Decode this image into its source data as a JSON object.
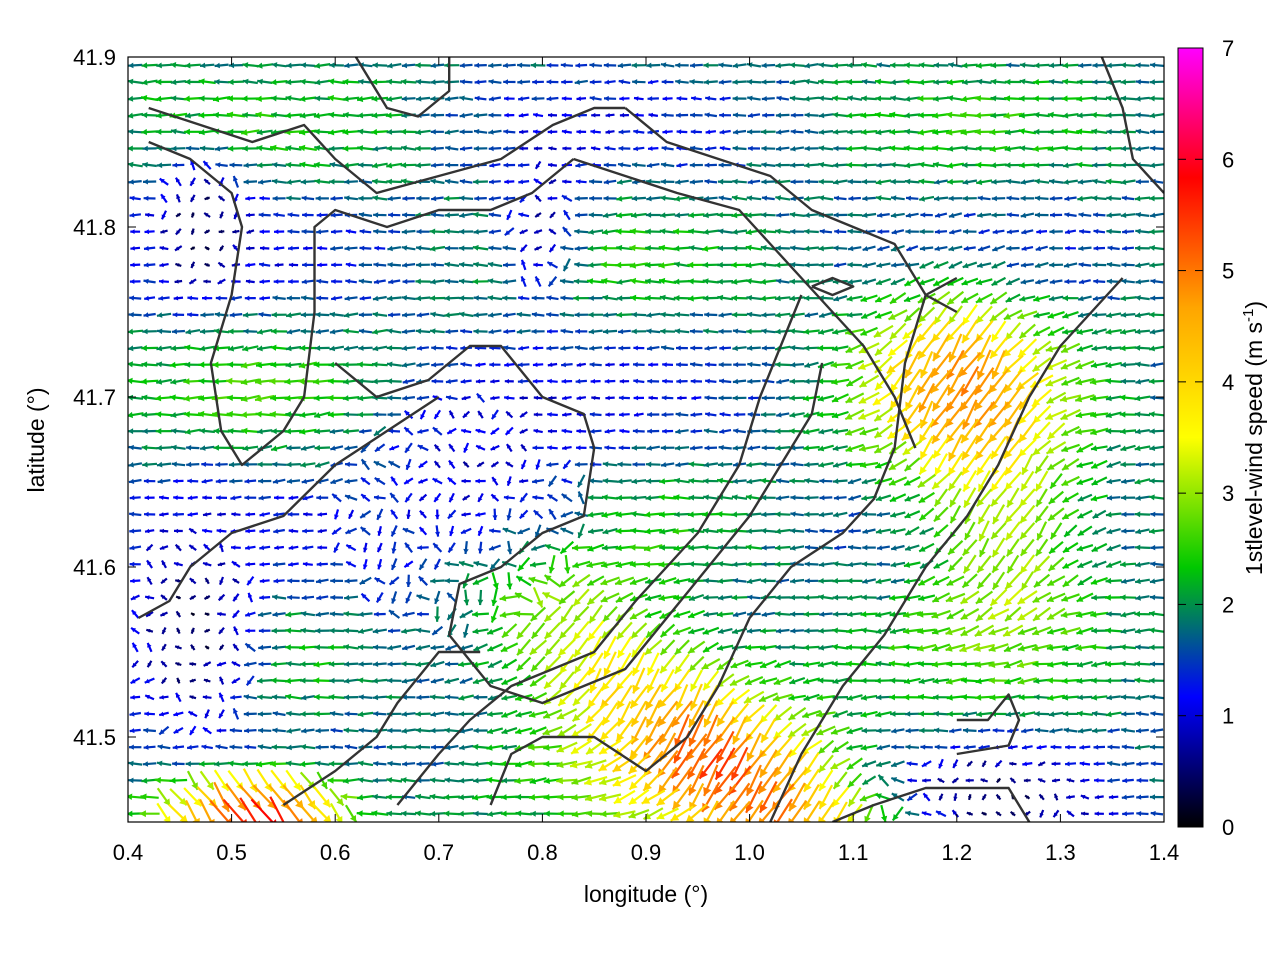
{
  "chart_data": {
    "type": "vector-field",
    "xlabel": "longitude (°)",
    "ylabel": "latitude (°)",
    "xlim": [
      0.4,
      1.4
    ],
    "ylim": [
      41.45,
      41.9
    ],
    "x_ticks": [
      "0.4",
      "0.5",
      "0.6",
      "0.7",
      "0.8",
      "0.9",
      "1.0",
      "1.1",
      "1.2",
      "1.3",
      "1.4"
    ],
    "x_tick_values": [
      0.4,
      0.5,
      0.6,
      0.7,
      0.8,
      0.9,
      1.0,
      1.1,
      1.2,
      1.3,
      1.4
    ],
    "y_ticks": [
      "41.5",
      "41.6",
      "41.7",
      "41.8",
      "41.9"
    ],
    "y_tick_values": [
      41.5,
      41.6,
      41.7,
      41.8,
      41.9
    ],
    "colorbar": {
      "label": "1stlevel-wind speed (m s-1)",
      "range": [
        0,
        7
      ],
      "ticks": [
        "0",
        "1",
        "2",
        "3",
        "4",
        "5",
        "6",
        "7"
      ],
      "tick_values": [
        0,
        1,
        2,
        3,
        4,
        5,
        6,
        7
      ],
      "colormap": [
        "#000000",
        "#0000ff",
        "#00c800",
        "#ffff00",
        "#ffa500",
        "#ff0000",
        "#ff00ff"
      ]
    },
    "grid": false,
    "field_grid": {
      "nx": 72,
      "ny": 46
    },
    "dominant_direction": "east-to-west flow (arrows pointing west) with north-westward flow in the south-east",
    "speed_regions": [
      {
        "name": "south-east high-wind band",
        "center": [
          1.0,
          41.57
        ],
        "peak_speed": 5.5,
        "direction": "north-west"
      },
      {
        "name": "north-east strong band",
        "center": [
          1.2,
          41.72
        ],
        "peak_speed": 4.5,
        "direction": "north-west"
      },
      {
        "name": "south-west corner jet",
        "center": [
          0.5,
          41.46
        ],
        "peak_speed": 6.5,
        "direction": "north-east"
      },
      {
        "name": "central calm area",
        "center": [
          0.7,
          41.63
        ],
        "peak_speed": 0.7,
        "direction": "variable"
      },
      {
        "name": "western calm area",
        "center": [
          0.45,
          41.55
        ],
        "peak_speed": 0.8,
        "direction": "variable"
      }
    ],
    "contours": [
      [
        [
          0.42,
          41.87
        ],
        [
          0.47,
          41.86
        ],
        [
          0.52,
          41.85
        ],
        [
          0.57,
          41.86
        ],
        [
          0.6,
          41.84
        ],
        [
          0.64,
          41.82
        ],
        [
          0.7,
          41.83
        ],
        [
          0.76,
          41.84
        ],
        [
          0.81,
          41.86
        ],
        [
          0.85,
          41.87
        ],
        [
          0.88,
          41.87
        ]
      ],
      [
        [
          0.62,
          41.9
        ],
        [
          0.65,
          41.87
        ],
        [
          0.68,
          41.865
        ],
        [
          0.7,
          41.875
        ],
        [
          0.71,
          41.88
        ],
        [
          0.71,
          41.9
        ]
      ],
      [
        [
          0.88,
          41.87
        ],
        [
          0.92,
          41.85
        ],
        [
          0.97,
          41.84
        ],
        [
          1.02,
          41.83
        ],
        [
          1.06,
          41.81
        ],
        [
          1.1,
          41.8
        ],
        [
          1.14,
          41.79
        ],
        [
          1.17,
          41.76
        ],
        [
          1.2,
          41.75
        ]
      ],
      [
        [
          0.42,
          41.85
        ],
        [
          0.46,
          41.84
        ],
        [
          0.5,
          41.82
        ],
        [
          0.51,
          41.8
        ],
        [
          0.5,
          41.76
        ],
        [
          0.48,
          41.72
        ],
        [
          0.49,
          41.68
        ],
        [
          0.51,
          41.66
        ],
        [
          0.55,
          41.68
        ],
        [
          0.57,
          41.7
        ],
        [
          0.58,
          41.75
        ],
        [
          0.58,
          41.8
        ],
        [
          0.6,
          41.81
        ],
        [
          0.65,
          41.8
        ],
        [
          0.7,
          41.81
        ],
        [
          0.75,
          41.81
        ],
        [
          0.79,
          41.82
        ],
        [
          0.83,
          41.84
        ]
      ],
      [
        [
          0.83,
          41.84
        ],
        [
          0.88,
          41.83
        ],
        [
          0.93,
          41.82
        ],
        [
          0.99,
          41.81
        ],
        [
          1.02,
          41.79
        ],
        [
          1.05,
          41.77
        ],
        [
          1.08,
          41.75
        ],
        [
          1.11,
          41.73
        ],
        [
          1.14,
          41.7
        ],
        [
          1.16,
          41.67
        ]
      ],
      [
        [
          0.6,
          41.72
        ],
        [
          0.64,
          41.7
        ],
        [
          0.69,
          41.71
        ],
        [
          0.73,
          41.73
        ],
        [
          0.76,
          41.73
        ],
        [
          0.8,
          41.7
        ],
        [
          0.84,
          41.69
        ],
        [
          0.85,
          41.67
        ],
        [
          0.84,
          41.63
        ],
        [
          0.8,
          41.62
        ],
        [
          0.76,
          41.6
        ],
        [
          0.72,
          41.59
        ],
        [
          0.71,
          41.56
        ],
        [
          0.75,
          41.53
        ],
        [
          0.8,
          41.52
        ],
        [
          0.84,
          41.53
        ],
        [
          0.88,
          41.54
        ],
        [
          0.92,
          41.57
        ],
        [
          0.96,
          41.6
        ],
        [
          1.0,
          41.63
        ],
        [
          1.03,
          41.66
        ],
        [
          1.06,
          41.69
        ],
        [
          1.07,
          41.72
        ]
      ],
      [
        [
          0.41,
          41.57
        ],
        [
          0.44,
          41.58
        ],
        [
          0.46,
          41.6
        ],
        [
          0.5,
          41.62
        ],
        [
          0.55,
          41.63
        ],
        [
          0.6,
          41.66
        ],
        [
          0.65,
          41.68
        ],
        [
          0.7,
          41.7
        ]
      ],
      [
        [
          0.55,
          41.46
        ],
        [
          0.6,
          41.48
        ],
        [
          0.64,
          41.5
        ],
        [
          0.66,
          41.52
        ],
        [
          0.7,
          41.55
        ],
        [
          0.74,
          41.55
        ]
      ],
      [
        [
          0.66,
          41.46
        ],
        [
          0.7,
          41.49
        ],
        [
          0.73,
          41.51
        ],
        [
          0.77,
          41.53
        ],
        [
          0.81,
          41.54
        ],
        [
          0.85,
          41.55
        ],
        [
          0.89,
          41.58
        ],
        [
          0.92,
          41.6
        ],
        [
          0.95,
          41.62
        ],
        [
          0.99,
          41.66
        ],
        [
          1.01,
          41.7
        ],
        [
          1.03,
          41.73
        ],
        [
          1.05,
          41.76
        ]
      ],
      [
        [
          0.75,
          41.46
        ],
        [
          0.77,
          41.49
        ],
        [
          0.8,
          41.5
        ],
        [
          0.85,
          41.5
        ],
        [
          0.9,
          41.48
        ],
        [
          0.94,
          41.5
        ],
        [
          0.97,
          41.53
        ],
        [
          1.0,
          41.57
        ],
        [
          1.04,
          41.6
        ],
        [
          1.09,
          41.62
        ],
        [
          1.12,
          41.64
        ],
        [
          1.14,
          41.67
        ],
        [
          1.15,
          41.72
        ],
        [
          1.17,
          41.76
        ],
        [
          1.2,
          41.77
        ]
      ],
      [
        [
          1.02,
          41.45
        ],
        [
          1.05,
          41.49
        ],
        [
          1.09,
          41.53
        ],
        [
          1.13,
          41.56
        ],
        [
          1.17,
          41.6
        ],
        [
          1.21,
          41.63
        ],
        [
          1.24,
          41.66
        ],
        [
          1.27,
          41.7
        ],
        [
          1.3,
          41.73
        ],
        [
          1.33,
          41.75
        ],
        [
          1.36,
          41.77
        ]
      ],
      [
        [
          1.2,
          41.51
        ],
        [
          1.23,
          41.51
        ],
        [
          1.25,
          41.525
        ],
        [
          1.26,
          41.51
        ],
        [
          1.25,
          41.495
        ],
        [
          1.2,
          41.49
        ]
      ],
      [
        [
          1.08,
          41.45
        ],
        [
          1.12,
          41.46
        ],
        [
          1.17,
          41.47
        ],
        [
          1.21,
          41.47
        ],
        [
          1.25,
          41.47
        ],
        [
          1.27,
          41.45
        ]
      ],
      [
        [
          1.34,
          41.9
        ],
        [
          1.36,
          41.87
        ],
        [
          1.37,
          41.84
        ],
        [
          1.4,
          41.82
        ]
      ],
      [
        [
          1.06,
          41.765
        ],
        [
          1.08,
          41.76
        ],
        [
          1.1,
          41.765
        ],
        [
          1.08,
          41.77
        ],
        [
          1.06,
          41.765
        ]
      ]
    ]
  }
}
